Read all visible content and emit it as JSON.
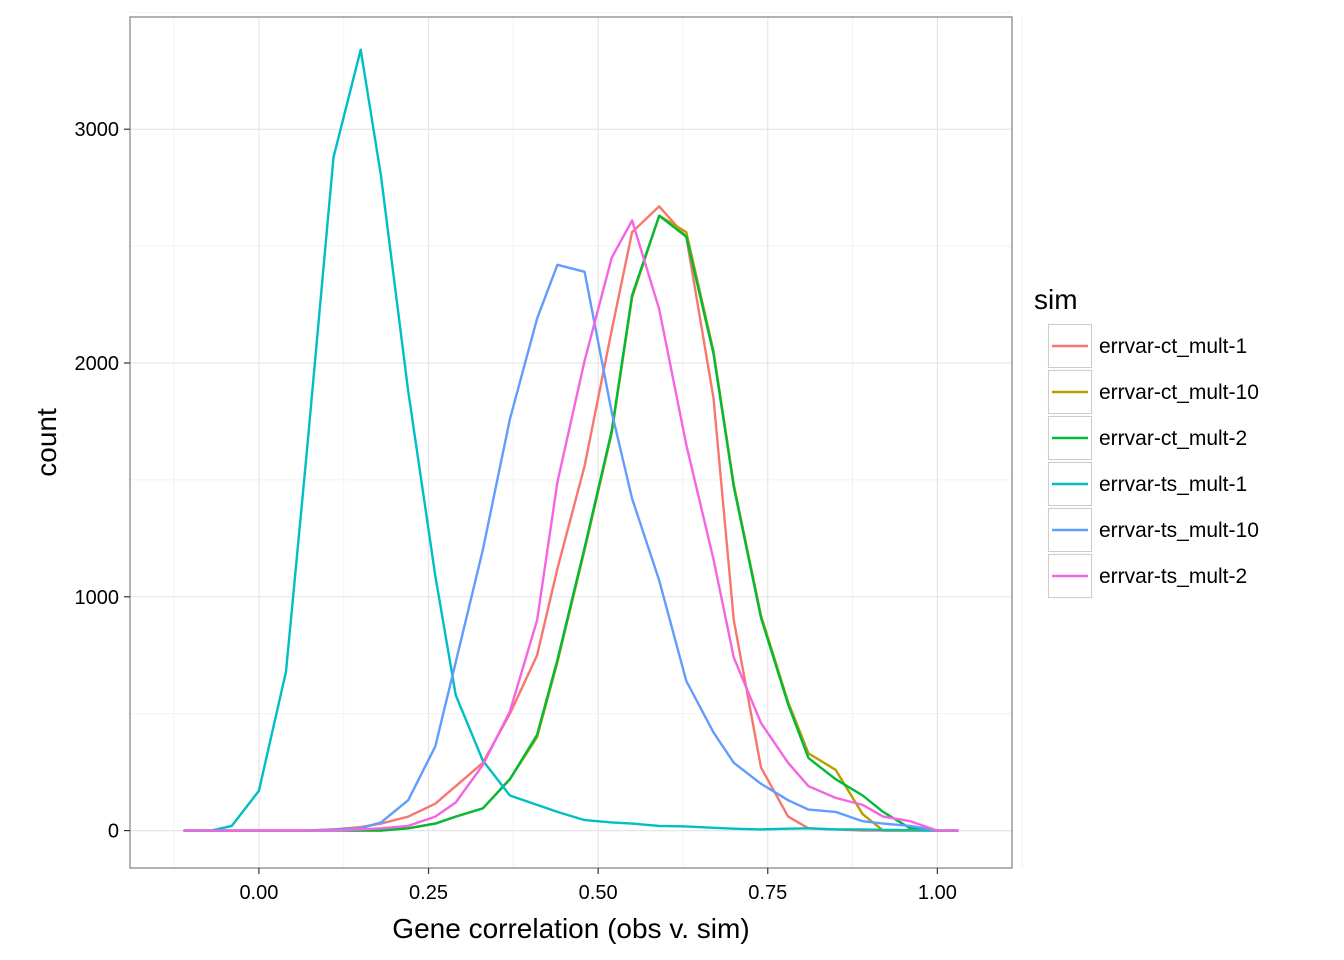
{
  "chart_data": {
    "type": "line",
    "xlabel": "Gene correlation (obs v. sim)",
    "ylabel": "count",
    "xlim": [
      -0.19,
      1.11
    ],
    "ylim": [
      -160,
      3480
    ],
    "x_ticks": [
      0,
      0.25,
      0.5,
      0.75,
      1
    ],
    "x_tick_labels": [
      "0.00",
      "0.25",
      "0.50",
      "0.75",
      "1.00"
    ],
    "y_ticks": [
      0,
      1000,
      2000,
      3000
    ],
    "y_tick_labels": [
      "0",
      "1000",
      "2000",
      "3000"
    ],
    "grid": true,
    "legend": {
      "title": "sim",
      "position": "right"
    },
    "series": [
      {
        "name": "errvar-ct_mult-1",
        "color": "#F8766D",
        "points": [
          [
            -0.11,
            0
          ],
          [
            -0.07,
            0
          ],
          [
            -0.04,
            0
          ],
          [
            0,
            0
          ],
          [
            0.04,
            0
          ],
          [
            0.07,
            0
          ],
          [
            0.11,
            5
          ],
          [
            0.15,
            15
          ],
          [
            0.18,
            30
          ],
          [
            0.22,
            60
          ],
          [
            0.26,
            115
          ],
          [
            0.29,
            190
          ],
          [
            0.33,
            290
          ],
          [
            0.37,
            500
          ],
          [
            0.41,
            750
          ],
          [
            0.44,
            1120
          ],
          [
            0.48,
            1560
          ],
          [
            0.52,
            2140
          ],
          [
            0.55,
            2560
          ],
          [
            0.59,
            2670
          ],
          [
            0.63,
            2540
          ],
          [
            0.67,
            1850
          ],
          [
            0.7,
            900
          ],
          [
            0.74,
            270
          ],
          [
            0.78,
            60
          ],
          [
            0.81,
            10
          ],
          [
            0.85,
            5
          ],
          [
            0.89,
            0
          ],
          [
            0.92,
            0
          ],
          [
            0.96,
            0
          ],
          [
            1.0,
            0
          ],
          [
            1.03,
            0
          ]
        ]
      },
      {
        "name": "errvar-ct_mult-10",
        "color": "#B79F00",
        "points": [
          [
            -0.11,
            0
          ],
          [
            -0.07,
            0
          ],
          [
            -0.04,
            0
          ],
          [
            0,
            0
          ],
          [
            0.04,
            0
          ],
          [
            0.07,
            0
          ],
          [
            0.11,
            0
          ],
          [
            0.15,
            0
          ],
          [
            0.18,
            0
          ],
          [
            0.22,
            10
          ],
          [
            0.26,
            30
          ],
          [
            0.29,
            60
          ],
          [
            0.33,
            95
          ],
          [
            0.37,
            220
          ],
          [
            0.41,
            400
          ],
          [
            0.44,
            720
          ],
          [
            0.48,
            1200
          ],
          [
            0.52,
            1700
          ],
          [
            0.55,
            2280
          ],
          [
            0.59,
            2630
          ],
          [
            0.63,
            2560
          ],
          [
            0.67,
            2050
          ],
          [
            0.7,
            1480
          ],
          [
            0.74,
            920
          ],
          [
            0.78,
            550
          ],
          [
            0.81,
            330
          ],
          [
            0.85,
            260
          ],
          [
            0.89,
            70
          ],
          [
            0.92,
            0
          ],
          [
            0.96,
            0
          ],
          [
            1.0,
            0
          ],
          [
            1.03,
            0
          ]
        ]
      },
      {
        "name": "errvar-ct_mult-2",
        "color": "#00BA38",
        "points": [
          [
            -0.11,
            0
          ],
          [
            -0.07,
            0
          ],
          [
            -0.04,
            0
          ],
          [
            0,
            0
          ],
          [
            0.04,
            0
          ],
          [
            0.07,
            0
          ],
          [
            0.11,
            0
          ],
          [
            0.15,
            0
          ],
          [
            0.18,
            0
          ],
          [
            0.22,
            10
          ],
          [
            0.26,
            30
          ],
          [
            0.29,
            60
          ],
          [
            0.33,
            95
          ],
          [
            0.37,
            220
          ],
          [
            0.41,
            410
          ],
          [
            0.44,
            730
          ],
          [
            0.48,
            1210
          ],
          [
            0.52,
            1710
          ],
          [
            0.55,
            2290
          ],
          [
            0.59,
            2630
          ],
          [
            0.63,
            2540
          ],
          [
            0.67,
            2040
          ],
          [
            0.7,
            1470
          ],
          [
            0.74,
            910
          ],
          [
            0.78,
            540
          ],
          [
            0.81,
            310
          ],
          [
            0.85,
            220
          ],
          [
            0.89,
            150
          ],
          [
            0.92,
            80
          ],
          [
            0.96,
            10
          ],
          [
            1.0,
            0
          ],
          [
            1.03,
            0
          ]
        ]
      },
      {
        "name": "errvar-ts_mult-1",
        "color": "#00BFC4",
        "points": [
          [
            -0.11,
            0
          ],
          [
            -0.07,
            0
          ],
          [
            -0.04,
            20
          ],
          [
            0,
            170
          ],
          [
            0.04,
            680
          ],
          [
            0.07,
            1600
          ],
          [
            0.11,
            2880
          ],
          [
            0.15,
            3340
          ],
          [
            0.18,
            2800
          ],
          [
            0.22,
            1880
          ],
          [
            0.26,
            1090
          ],
          [
            0.29,
            580
          ],
          [
            0.33,
            300
          ],
          [
            0.37,
            150
          ],
          [
            0.41,
            110
          ],
          [
            0.44,
            80
          ],
          [
            0.48,
            45
          ],
          [
            0.52,
            35
          ],
          [
            0.55,
            30
          ],
          [
            0.59,
            20
          ],
          [
            0.63,
            18
          ],
          [
            0.67,
            12
          ],
          [
            0.7,
            8
          ],
          [
            0.74,
            5
          ],
          [
            0.78,
            8
          ],
          [
            0.81,
            10
          ],
          [
            0.85,
            5
          ],
          [
            0.89,
            5
          ],
          [
            0.92,
            3
          ],
          [
            0.96,
            2
          ],
          [
            1.0,
            0
          ],
          [
            1.03,
            0
          ]
        ]
      },
      {
        "name": "errvar-ts_mult-10",
        "color": "#619CFF",
        "points": [
          [
            -0.11,
            0
          ],
          [
            -0.07,
            0
          ],
          [
            -0.04,
            0
          ],
          [
            0,
            0
          ],
          [
            0.04,
            0
          ],
          [
            0.07,
            0
          ],
          [
            0.11,
            5
          ],
          [
            0.15,
            10
          ],
          [
            0.18,
            35
          ],
          [
            0.22,
            130
          ],
          [
            0.26,
            360
          ],
          [
            0.29,
            720
          ],
          [
            0.33,
            1200
          ],
          [
            0.37,
            1760
          ],
          [
            0.41,
            2190
          ],
          [
            0.44,
            2420
          ],
          [
            0.48,
            2390
          ],
          [
            0.52,
            1790
          ],
          [
            0.55,
            1420
          ],
          [
            0.59,
            1070
          ],
          [
            0.63,
            640
          ],
          [
            0.67,
            420
          ],
          [
            0.7,
            290
          ],
          [
            0.74,
            200
          ],
          [
            0.78,
            130
          ],
          [
            0.81,
            90
          ],
          [
            0.85,
            80
          ],
          [
            0.89,
            40
          ],
          [
            0.92,
            30
          ],
          [
            0.96,
            20
          ],
          [
            1.0,
            0
          ],
          [
            1.03,
            0
          ]
        ]
      },
      {
        "name": "errvar-ts_mult-2",
        "color": "#F564E3",
        "points": [
          [
            -0.11,
            0
          ],
          [
            -0.07,
            0
          ],
          [
            -0.04,
            0
          ],
          [
            0,
            0
          ],
          [
            0.04,
            0
          ],
          [
            0.07,
            0
          ],
          [
            0.11,
            0
          ],
          [
            0.15,
            5
          ],
          [
            0.18,
            10
          ],
          [
            0.22,
            20
          ],
          [
            0.26,
            60
          ],
          [
            0.29,
            120
          ],
          [
            0.33,
            280
          ],
          [
            0.37,
            510
          ],
          [
            0.41,
            900
          ],
          [
            0.44,
            1490
          ],
          [
            0.48,
            2010
          ],
          [
            0.52,
            2450
          ],
          [
            0.55,
            2610
          ],
          [
            0.59,
            2230
          ],
          [
            0.63,
            1650
          ],
          [
            0.67,
            1160
          ],
          [
            0.7,
            740
          ],
          [
            0.74,
            460
          ],
          [
            0.78,
            290
          ],
          [
            0.81,
            190
          ],
          [
            0.85,
            140
          ],
          [
            0.89,
            110
          ],
          [
            0.92,
            60
          ],
          [
            0.96,
            40
          ],
          [
            1.0,
            0
          ],
          [
            1.03,
            0
          ]
        ]
      }
    ]
  }
}
